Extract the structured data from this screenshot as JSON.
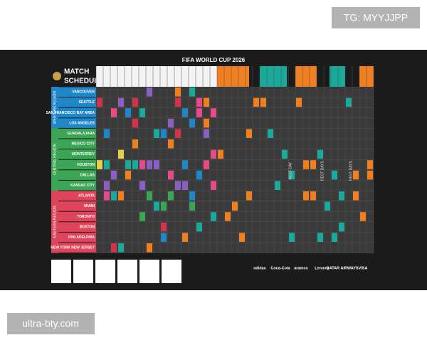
{
  "watermark_top": "TG: MYYJJPP",
  "watermark_bottom": "ultra-bty.com",
  "poster": {
    "title": "FIFA WORLD CUP 2026",
    "heading": [
      "MATCH",
      "SCHEDULE"
    ],
    "regions": [
      {
        "label": "WESTERN REGION",
        "cities": [
          "VANCOUVER",
          "SEATTLE",
          "SAN FRANCISCO BAY AREA",
          "LOS ANGELES"
        ]
      },
      {
        "label": "CENTRAL REGION",
        "cities": [
          "GUADALAJARA",
          "MEXICO CITY",
          "MONTERREY",
          "HOUSTON",
          "DALLAS",
          "KANSAS CITY"
        ]
      },
      {
        "label": "EASTERN REGION",
        "cities": [
          "ATLANTA",
          "MIAMI",
          "TORONTO",
          "BOSTON",
          "PHILADELPHIA",
          "NEW YORK NEW JERSEY"
        ]
      }
    ],
    "rest_days": [
      "REST DAY",
      "REST DAYS",
      "REST DAYS"
    ],
    "sponsors": [
      "adidas",
      "Coca-Cola",
      "aramco",
      "Lenovo",
      "QATAR AIRWAYS",
      "VISA"
    ]
  }
}
